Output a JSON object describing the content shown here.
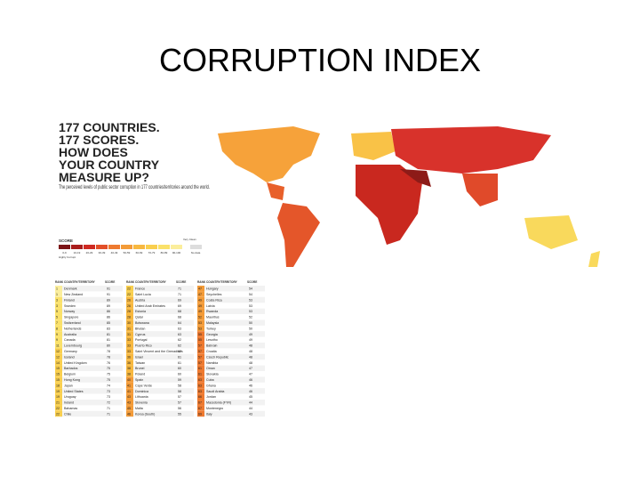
{
  "slide": {
    "title": "CORRUPTION INDEX"
  },
  "infographic": {
    "headline": [
      "177 COUNTRIES.",
      "177 SCORES.",
      "HOW DOES",
      "YOUR COUNTRY",
      "MEASURE UP?"
    ],
    "description": "The perceived levels of public sector corruption in 177 countries/territories around the world.",
    "legend": {
      "title": "SCORE",
      "ranges": [
        "0-9",
        "10-19",
        "20-29",
        "30-39",
        "40-49",
        "50-59",
        "60-69",
        "70-79",
        "80-89",
        "90-100"
      ],
      "no_data": "No data",
      "left": "Highly Corrupt",
      "right": "Very Clean"
    },
    "table": {
      "headers": [
        "RANK",
        "COUNTRY/TERRITORY",
        "SCORE"
      ],
      "columns": [
        [
          [
            1,
            "Denmark",
            91
          ],
          [
            1,
            "New Zealand",
            91
          ],
          [
            3,
            "Finland",
            89
          ],
          [
            3,
            "Sweden",
            89
          ],
          [
            5,
            "Norway",
            86
          ],
          [
            5,
            "Singapore",
            86
          ],
          [
            7,
            "Switzerland",
            85
          ],
          [
            8,
            "Netherlands",
            83
          ],
          [
            9,
            "Australia",
            81
          ],
          [
            9,
            "Canada",
            81
          ],
          [
            11,
            "Luxembourg",
            80
          ],
          [
            12,
            "Germany",
            78
          ],
          [
            12,
            "Iceland",
            78
          ],
          [
            14,
            "United Kingdom",
            76
          ],
          [
            15,
            "Barbados",
            75
          ],
          [
            15,
            "Belgium",
            75
          ],
          [
            15,
            "Hong Kong",
            75
          ],
          [
            18,
            "Japan",
            74
          ],
          [
            19,
            "United States",
            73
          ],
          [
            19,
            "Uruguay",
            73
          ],
          [
            21,
            "Ireland",
            72
          ],
          [
            22,
            "Bahamas",
            71
          ],
          [
            22,
            "Chile",
            71
          ]
        ],
        [
          [
            22,
            "France",
            71
          ],
          [
            22,
            "Saint Lucia",
            71
          ],
          [
            26,
            "Austria",
            69
          ],
          [
            26,
            "United Arab Emirates",
            69
          ],
          [
            28,
            "Estonia",
            68
          ],
          [
            28,
            "Qatar",
            68
          ],
          [
            30,
            "Botswana",
            64
          ],
          [
            31,
            "Bhutan",
            63
          ],
          [
            31,
            "Cyprus",
            63
          ],
          [
            33,
            "Portugal",
            62
          ],
          [
            33,
            "Puerto Rico",
            62
          ],
          [
            33,
            "Saint Vincent and the Grenadines",
            62
          ],
          [
            36,
            "Israel",
            61
          ],
          [
            36,
            "Taiwan",
            61
          ],
          [
            38,
            "Brunei",
            60
          ],
          [
            38,
            "Poland",
            60
          ],
          [
            40,
            "Spain",
            59
          ],
          [
            41,
            "Cape Verde",
            58
          ],
          [
            41,
            "Dominica",
            58
          ],
          [
            43,
            "Lithuania",
            57
          ],
          [
            43,
            "Slovenia",
            57
          ],
          [
            45,
            "Malta",
            56
          ],
          [
            46,
            "Korea (South)",
            55
          ]
        ],
        [
          [
            47,
            "Hungary",
            54
          ],
          [
            47,
            "Seychelles",
            54
          ],
          [
            49,
            "Costa Rica",
            53
          ],
          [
            49,
            "Latvia",
            53
          ],
          [
            49,
            "Rwanda",
            53
          ],
          [
            52,
            "Mauritius",
            52
          ],
          [
            53,
            "Malaysia",
            50
          ],
          [
            53,
            "Turkey",
            50
          ],
          [
            55,
            "Georgia",
            49
          ],
          [
            55,
            "Lesotho",
            49
          ],
          [
            57,
            "Bahrain",
            48
          ],
          [
            57,
            "Croatia",
            48
          ],
          [
            57,
            "Czech Republic",
            48
          ],
          [
            57,
            "Namibia",
            48
          ],
          [
            61,
            "Oman",
            47
          ],
          [
            61,
            "Slovakia",
            47
          ],
          [
            63,
            "Cuba",
            46
          ],
          [
            63,
            "Ghana",
            46
          ],
          [
            63,
            "Saudi Arabia",
            46
          ],
          [
            66,
            "Jordan",
            45
          ],
          [
            67,
            "Macedonia (FYR)",
            44
          ],
          [
            67,
            "Montenegro",
            44
          ],
          [
            69,
            "Italy",
            43
          ]
        ]
      ]
    }
  }
}
